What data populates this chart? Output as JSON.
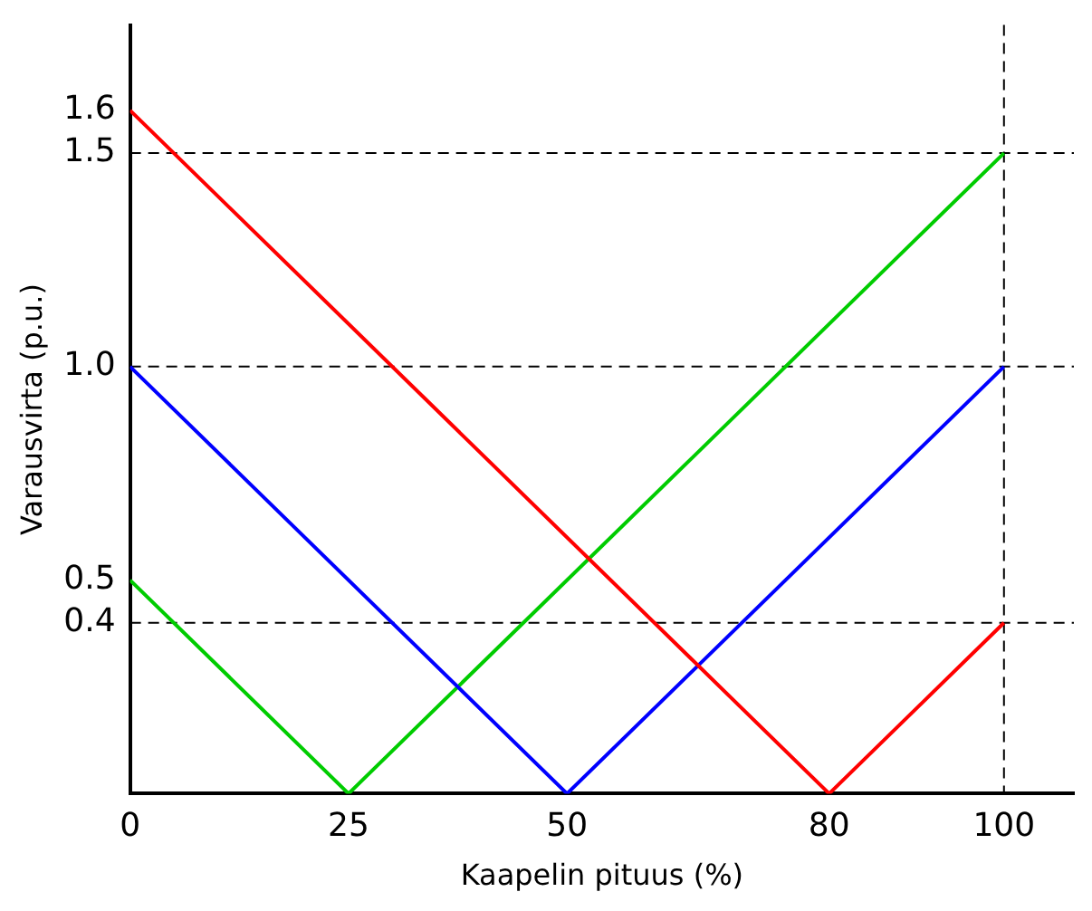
{
  "chart_data": {
    "type": "line",
    "xlabel": "Kaapelin pituus (%)",
    "ylabel": "Varausvirta (p.u.)",
    "xlim": [
      0,
      108
    ],
    "ylim": [
      0,
      1.8
    ],
    "xticks": [
      0,
      25,
      50,
      80,
      100
    ],
    "yticks": [
      0.4,
      0.5,
      {
        "value": 1,
        "label": "1.0"
      },
      1.5,
      1.6
    ],
    "grid": false,
    "legend": false,
    "marker": "none",
    "line_style": "solid",
    "series": [
      {
        "color": "#ff0000",
        "x": [
          0,
          80,
          100
        ],
        "values": [
          1.6,
          0,
          0.4
        ]
      },
      {
        "color": "#0000ff",
        "x": [
          0,
          50,
          100
        ],
        "values": [
          1.0,
          0,
          1.0
        ]
      },
      {
        "color": "#00cc00",
        "x": [
          0,
          25,
          100
        ],
        "values": [
          0.5,
          0,
          1.5
        ]
      }
    ],
    "ref_lines": [
      {
        "axis": "y",
        "value": 0.4,
        "color": "#000000",
        "line_style": "dashed"
      },
      {
        "axis": "y",
        "value": 1.0,
        "color": "#000000",
        "line_style": "dashed"
      },
      {
        "axis": "y",
        "value": 1.5,
        "color": "#000000",
        "line_style": "dashed"
      },
      {
        "axis": "x",
        "value": 100,
        "color": "#000000",
        "line_style": "dashed"
      }
    ]
  }
}
